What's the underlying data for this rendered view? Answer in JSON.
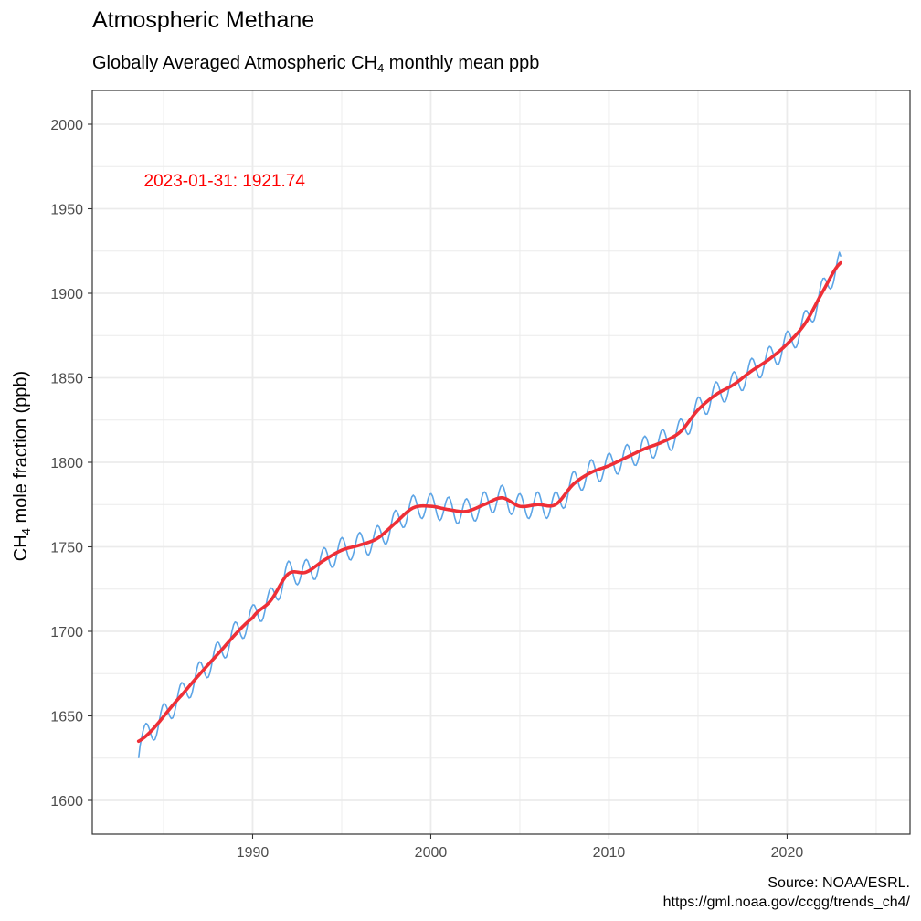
{
  "title": "Atmospheric Methane",
  "subtitle": {
    "prefix": "Globally Averaged Atmospheric CH",
    "subscript": "4",
    "suffix": " monthly mean ppb"
  },
  "caption": {
    "line1": "Source: NOAA/ESRL.",
    "line2": "https://gml.noaa.gov/ccgg/trends_ch4/"
  },
  "colors": {
    "monthly": "#5DA5E6",
    "trend": "#EE2F37",
    "annotation": "#FF0000",
    "grid": "#EBEBEB",
    "border": "#333333"
  },
  "chart_data": {
    "type": "line",
    "title": "Atmospheric Methane",
    "xlabel": "",
    "ylabel": {
      "prefix": "CH",
      "subscript": "4",
      "suffix": " mole fraction (ppb)"
    },
    "xlim": [
      1981.0,
      2026.9
    ],
    "ylim": [
      1580,
      2020
    ],
    "x_ticks": [
      1990,
      2000,
      2010,
      2020
    ],
    "y_ticks": [
      1600,
      1650,
      1700,
      1750,
      1800,
      1850,
      1900,
      1950,
      2000
    ],
    "grid": true,
    "trend_knots": {
      "x": [
        1983.6,
        1986,
        1988,
        1990,
        1991,
        1992,
        1993,
        1994,
        1995,
        1996,
        1997,
        1998,
        1999,
        2000,
        2001,
        2002,
        2003,
        2004,
        2005,
        2006,
        2007,
        2008,
        2009,
        2010,
        2011,
        2012,
        2013,
        2014,
        2015,
        2016,
        2017,
        2018,
        2019,
        2020,
        2021,
        2022,
        2023.0
      ],
      "y": [
        1635,
        1662,
        1686,
        1708,
        1718,
        1734,
        1735,
        1742,
        1748,
        1751,
        1755,
        1764,
        1773,
        1774,
        1772,
        1771,
        1775,
        1779,
        1774,
        1775,
        1775,
        1787,
        1794,
        1798,
        1803,
        1808,
        1812,
        1818,
        1831,
        1840,
        1846,
        1854,
        1861,
        1870,
        1882,
        1901,
        1918
      ]
    },
    "monthly_series": {
      "name": "monthly mean",
      "seasonal_amplitude": 7.5,
      "start_value": 1625,
      "end_value": 1921.74
    },
    "annotation": {
      "text": "2023-01-31: 1921.74",
      "x": 1983.9,
      "y": 1967
    }
  }
}
